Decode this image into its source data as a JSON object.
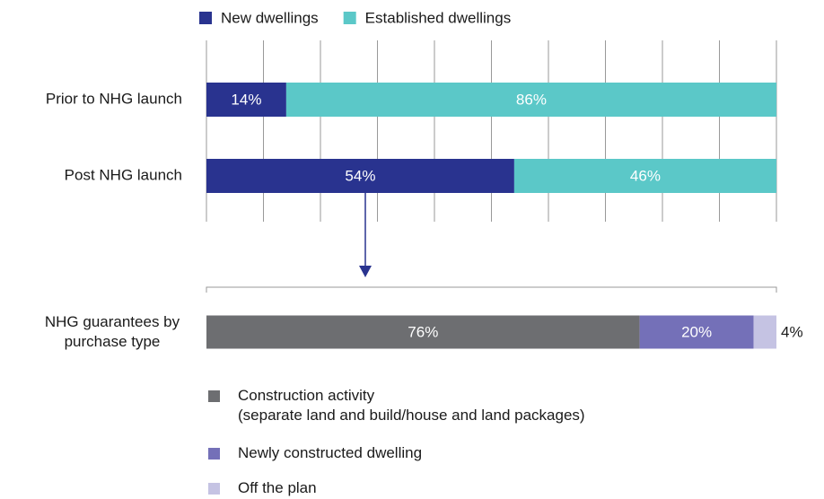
{
  "charts": [
    {
      "type": "stacked_bar",
      "categories": [
        "Prior to NHG launch",
        "Post NHG launch"
      ],
      "series": [
        {
          "name": "New dwellings",
          "color": "#29338f",
          "values": [
            14,
            54
          ],
          "value_labels": [
            "14%",
            "54%"
          ]
        },
        {
          "name": "Established dwellings",
          "color": "#5bc8c8",
          "values": [
            86,
            46
          ],
          "value_labels": [
            "86%",
            "46%"
          ]
        }
      ],
      "xlim": [
        0,
        100
      ],
      "xticks": [
        0,
        10,
        20,
        30,
        40,
        50,
        60,
        70,
        80,
        90,
        100
      ],
      "grid": true,
      "legend": "top"
    },
    {
      "type": "stacked_bar",
      "categories": [
        "NHG guarantees by purchase type"
      ],
      "series": [
        {
          "name": "Construction activity\n(separate land and build/house and land packages)",
          "color": "#6d6e71",
          "values": [
            76
          ],
          "value_labels": [
            "76%"
          ]
        },
        {
          "name": "Newly constructed dwelling",
          "color": "#7470b8",
          "values": [
            20
          ],
          "value_labels": [
            "20%"
          ]
        },
        {
          "name": "Off the plan",
          "color": "#c5c3e3",
          "values": [
            4
          ],
          "value_labels": [
            "4%"
          ]
        }
      ],
      "xlim": [
        0,
        100
      ],
      "grid": false,
      "legend": "bottom"
    }
  ]
}
